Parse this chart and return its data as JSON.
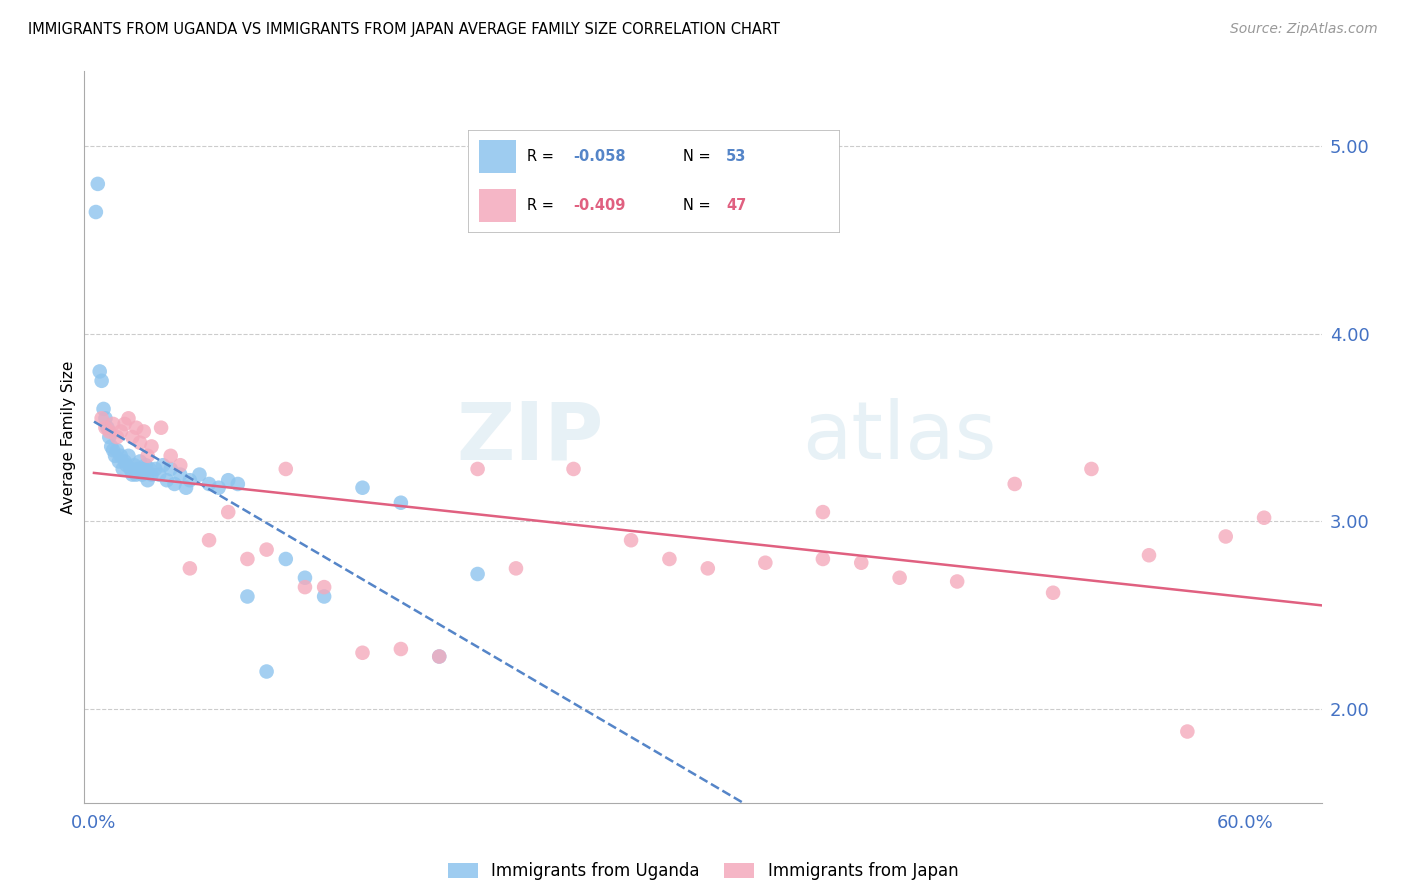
{
  "title": "IMMIGRANTS FROM UGANDA VS IMMIGRANTS FROM JAPAN AVERAGE FAMILY SIZE CORRELATION CHART",
  "source": "Source: ZipAtlas.com",
  "ylabel": "Average Family Size",
  "legend_uganda": "Immigrants from Uganda",
  "legend_japan": "Immigrants from Japan",
  "R_uganda": -0.058,
  "N_uganda": 53,
  "R_japan": -0.409,
  "N_japan": 47,
  "yticks": [
    2.0,
    3.0,
    4.0,
    5.0
  ],
  "ylim": [
    1.5,
    5.4
  ],
  "xlim": [
    -0.005,
    0.64
  ],
  "xticks": [
    0.0,
    0.1,
    0.2,
    0.3,
    0.4,
    0.5,
    0.6
  ],
  "xtick_labels": [
    "0.0%",
    "",
    "",
    "",
    "",
    "",
    "60.0%"
  ],
  "color_uganda": "#8DC4EE",
  "color_japan": "#F4AABC",
  "trend_color_uganda": "#5585C8",
  "trend_color_japan": "#E06080",
  "watermark_zip": "ZIP",
  "watermark_atlas": "atlas",
  "uganda_x": [
    0.001,
    0.002,
    0.003,
    0.004,
    0.005,
    0.006,
    0.007,
    0.008,
    0.009,
    0.01,
    0.011,
    0.012,
    0.013,
    0.014,
    0.015,
    0.016,
    0.017,
    0.018,
    0.019,
    0.02,
    0.021,
    0.022,
    0.023,
    0.024,
    0.025,
    0.026,
    0.027,
    0.028,
    0.029,
    0.03,
    0.032,
    0.034,
    0.036,
    0.038,
    0.04,
    0.042,
    0.045,
    0.048,
    0.05,
    0.055,
    0.06,
    0.065,
    0.07,
    0.075,
    0.08,
    0.09,
    0.1,
    0.11,
    0.12,
    0.14,
    0.16,
    0.18,
    0.2
  ],
  "uganda_y": [
    4.65,
    4.8,
    3.8,
    3.75,
    3.6,
    3.55,
    3.5,
    3.45,
    3.4,
    3.38,
    3.35,
    3.38,
    3.32,
    3.35,
    3.28,
    3.32,
    3.3,
    3.35,
    3.28,
    3.25,
    3.3,
    3.25,
    3.28,
    3.32,
    3.25,
    3.28,
    3.3,
    3.22,
    3.28,
    3.25,
    3.28,
    3.25,
    3.3,
    3.22,
    3.28,
    3.2,
    3.25,
    3.18,
    3.22,
    3.25,
    3.2,
    3.18,
    3.22,
    3.2,
    2.6,
    2.2,
    2.8,
    2.7,
    2.6,
    3.18,
    3.1,
    2.28,
    2.72
  ],
  "japan_x": [
    0.004,
    0.006,
    0.008,
    0.01,
    0.012,
    0.014,
    0.016,
    0.018,
    0.02,
    0.022,
    0.024,
    0.026,
    0.028,
    0.03,
    0.035,
    0.04,
    0.045,
    0.05,
    0.06,
    0.07,
    0.08,
    0.09,
    0.1,
    0.11,
    0.12,
    0.14,
    0.16,
    0.18,
    0.2,
    0.22,
    0.25,
    0.28,
    0.3,
    0.32,
    0.35,
    0.38,
    0.4,
    0.42,
    0.45,
    0.48,
    0.5,
    0.52,
    0.55,
    0.57,
    0.59,
    0.61,
    0.38
  ],
  "japan_y": [
    3.55,
    3.5,
    3.48,
    3.52,
    3.45,
    3.48,
    3.52,
    3.55,
    3.45,
    3.5,
    3.42,
    3.48,
    3.35,
    3.4,
    3.5,
    3.35,
    3.3,
    2.75,
    2.9,
    3.05,
    2.8,
    2.85,
    3.28,
    2.65,
    2.65,
    2.3,
    2.32,
    2.28,
    3.28,
    2.75,
    3.28,
    2.9,
    2.8,
    2.75,
    2.78,
    2.8,
    2.78,
    2.7,
    2.68,
    3.2,
    2.62,
    3.28,
    2.82,
    1.88,
    2.92,
    3.02,
    3.05
  ]
}
